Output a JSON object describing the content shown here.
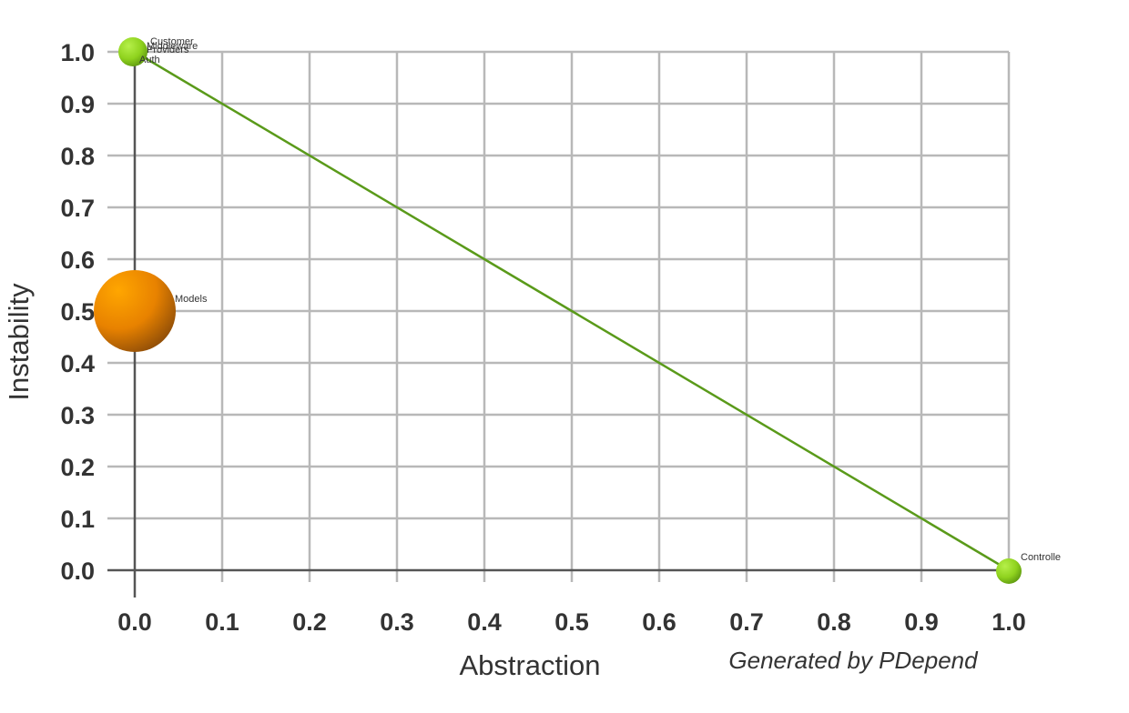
{
  "chart_data": {
    "type": "scatter",
    "xlabel": "Abstraction",
    "ylabel": "Instability",
    "xlim": [
      0,
      1
    ],
    "ylim": [
      0,
      1
    ],
    "x_ticks": [
      "0.0",
      "0.1",
      "0.2",
      "0.3",
      "0.4",
      "0.5",
      "0.6",
      "0.7",
      "0.8",
      "0.9",
      "1.0"
    ],
    "y_ticks": [
      "0.0",
      "0.1",
      "0.2",
      "0.3",
      "0.4",
      "0.5",
      "0.6",
      "0.7",
      "0.8",
      "0.9",
      "1.0"
    ],
    "grid": true,
    "main_sequence": {
      "from": [
        0,
        1
      ],
      "to": [
        1,
        0
      ],
      "color": "#5a9a1a"
    },
    "points": [
      {
        "label": "Customer",
        "x": 0.0,
        "y": 1.0,
        "size": "small",
        "color": "#8fd21e"
      },
      {
        "label": "Middleware",
        "x": 0.0,
        "y": 1.0,
        "size": "small",
        "color": "#8fd21e"
      },
      {
        "label": "Providers",
        "x": 0.0,
        "y": 1.0,
        "size": "small",
        "color": "#8fd21e"
      },
      {
        "label": "Auth",
        "x": 0.0,
        "y": 1.0,
        "size": "small",
        "color": "#8fd21e"
      },
      {
        "label": "Models",
        "x": 0.0,
        "y": 0.5,
        "size": "large",
        "color": "#f08c00"
      },
      {
        "label": "Controlle",
        "x": 1.0,
        "y": 0.0,
        "size": "small",
        "color": "#8fd21e"
      }
    ]
  },
  "credit": "Generated by PDepend"
}
